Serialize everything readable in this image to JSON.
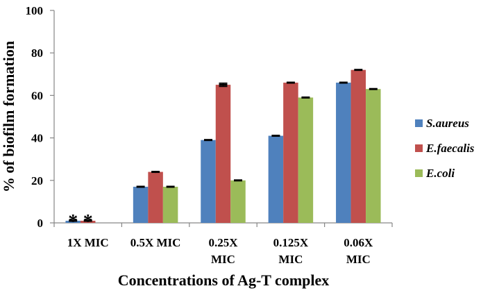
{
  "chart_data": {
    "type": "bar",
    "title": "",
    "xlabel": "Concentrations of Ag-T complex",
    "ylabel": "% of biofilm formation",
    "ylim": [
      0,
      100
    ],
    "yticks": [
      "0",
      "20",
      "40",
      "60",
      "80",
      "100"
    ],
    "ytick_values": [
      0,
      20,
      40,
      60,
      80,
      100
    ],
    "grid": false,
    "legend_position": "right",
    "categories": [
      [
        "1X MIC"
      ],
      [
        "0.5X MIC"
      ],
      [
        "0.25X",
        "MIC"
      ],
      [
        "0.125X",
        "MIC"
      ],
      [
        "0.06X",
        "MIC"
      ]
    ],
    "series": [
      {
        "name": "S.aureus",
        "color": "#4f81bd",
        "values": [
          1,
          17,
          39,
          41,
          66
        ],
        "errors": [
          0.3,
          0.3,
          0.3,
          0.3,
          0.3
        ]
      },
      {
        "name": "E.faecalis",
        "color": "#c0504d",
        "values": [
          1,
          24,
          65,
          66,
          72
        ],
        "errors": [
          0.3,
          0.5,
          0.8,
          0.3,
          0.3
        ]
      },
      {
        "name": "E.coli",
        "color": "#9bbb59",
        "values": [
          0,
          17,
          20,
          59,
          63
        ],
        "errors": [
          0,
          0.3,
          0.3,
          0.3,
          0.3
        ]
      }
    ],
    "annotations": [
      {
        "text": "*",
        "category": "1X MIC",
        "series": "S.aureus"
      },
      {
        "text": "*",
        "category": "1X MIC",
        "series": "E.faecalis"
      }
    ]
  }
}
